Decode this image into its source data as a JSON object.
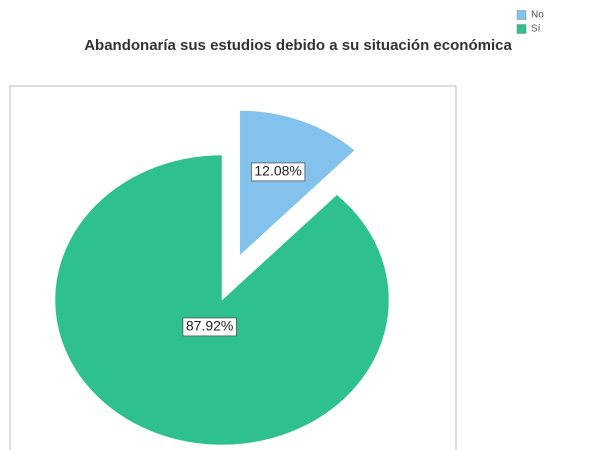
{
  "chart_data": {
    "type": "pie",
    "title": "Abandonaría sus estudios debido a su situación económica",
    "categories": [
      "No",
      "Sí"
    ],
    "values": [
      12.08,
      87.92
    ],
    "value_labels": [
      "12.08%",
      "87.92%"
    ],
    "colors": [
      "#82c2ec",
      "#2fc08f"
    ],
    "explode": [
      true,
      false
    ],
    "legend": "top-right"
  }
}
